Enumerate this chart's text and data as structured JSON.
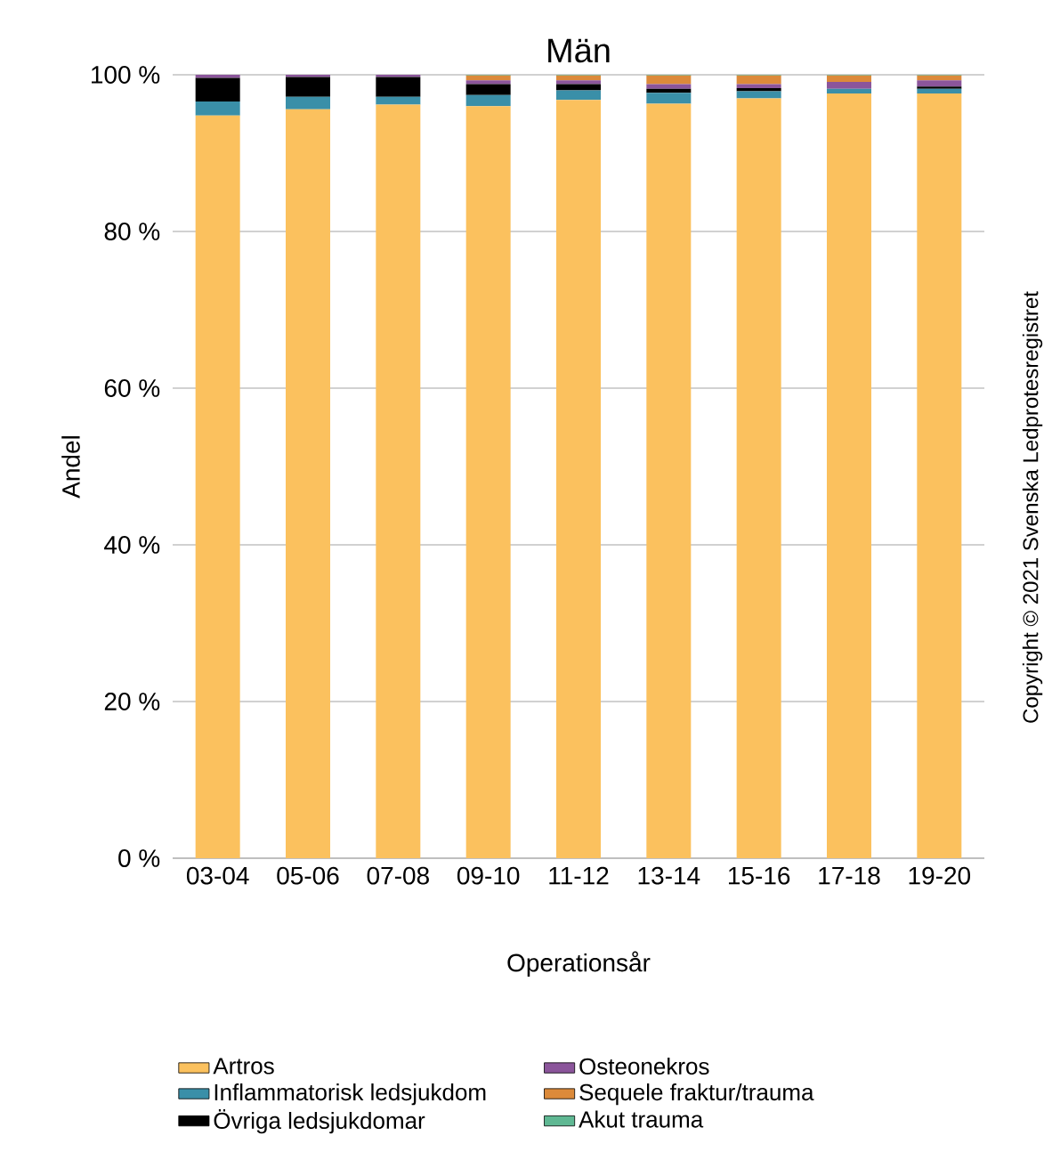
{
  "chart_data": {
    "type": "bar",
    "title": "Män",
    "xlabel": "Operationsår",
    "ylabel": "Andel",
    "stacked": true,
    "grid": "y",
    "legend": "bottom",
    "categories": [
      "03-04",
      "05-06",
      "07-08",
      "09-10",
      "11-12",
      "13-14",
      "15-16",
      "17-18",
      "19-20"
    ],
    "ylim": [
      0,
      100
    ],
    "yticks": [
      {
        "value": 0,
        "label": "0 %"
      },
      {
        "value": 20,
        "label": "20 %"
      },
      {
        "value": 40,
        "label": "40 %"
      },
      {
        "value": 60,
        "label": "60 %"
      },
      {
        "value": 80,
        "label": "80 %"
      },
      {
        "value": 100,
        "label": "100 %"
      }
    ],
    "series": [
      {
        "name": "Artros",
        "color": "#fbc15e",
        "values": [
          94.8,
          95.6,
          96.2,
          96.0,
          96.8,
          96.3,
          97.0,
          97.6,
          97.6
        ]
      },
      {
        "name": "Inflammatorisk ledsjukdom",
        "color": "#3a8fa8",
        "values": [
          1.8,
          1.6,
          1.0,
          1.4,
          1.2,
          1.4,
          0.9,
          0.6,
          0.6
        ]
      },
      {
        "name": "Övriga ledsjukdomar",
        "color": "#000000",
        "values": [
          3.0,
          2.5,
          2.5,
          1.4,
          0.8,
          0.5,
          0.4,
          0.0,
          0.3
        ]
      },
      {
        "name": "Osteonekros",
        "color": "#8b559b",
        "values": [
          0.4,
          0.3,
          0.3,
          0.5,
          0.5,
          0.6,
          0.5,
          0.9,
          0.8
        ]
      },
      {
        "name": "Sequele fraktur/trauma",
        "color": "#dc8a3a",
        "values": [
          0,
          0,
          0,
          0.6,
          0.6,
          1.1,
          1.1,
          0.8,
          0.6
        ]
      },
      {
        "name": "Akut trauma",
        "color": "#5fb893",
        "values": [
          0,
          0,
          0,
          0.1,
          0.1,
          0.1,
          0.1,
          0.1,
          0.1
        ]
      }
    ],
    "annotations": [
      "Copyright © 2021 Svenska Ledprotesregistret"
    ]
  }
}
